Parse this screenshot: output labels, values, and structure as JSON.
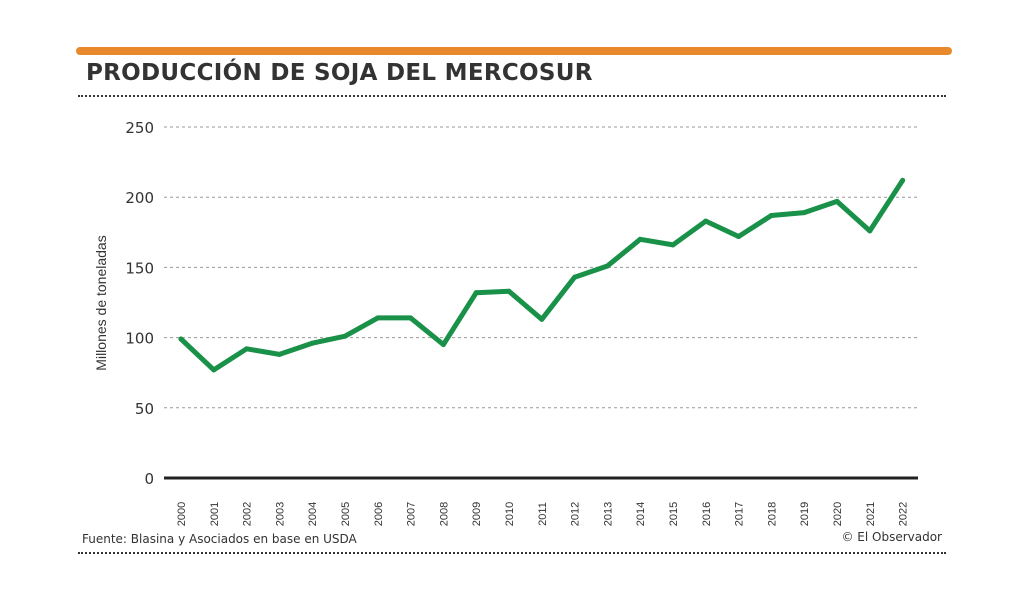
{
  "header": {
    "title": "PRODUCCIÓN DE SOJA DEL MERCOSUR"
  },
  "footer": {
    "source": "Fuente: Blasina y Asociados en base en USDA",
    "credit": "© El Observador"
  },
  "colors": {
    "accent_bar": "#e8892c",
    "line": "#1a9148",
    "text": "#333333",
    "grid": "#999999"
  },
  "chart_data": {
    "type": "line",
    "title": "PRODUCCIÓN DE SOJA DEL MERCOSUR",
    "xlabel": "",
    "ylabel": "Millones de toneladas",
    "ylim": [
      0,
      250
    ],
    "yticks": [
      0,
      50,
      100,
      150,
      200,
      250
    ],
    "grid": true,
    "legend": "none",
    "categories": [
      "2000",
      "2001",
      "2002",
      "2003",
      "2004",
      "2005",
      "2006",
      "2007",
      "2008",
      "2009",
      "2010",
      "2011",
      "2012",
      "2013",
      "2014",
      "2015",
      "2016",
      "2017",
      "2018",
      "2019",
      "2020",
      "2021",
      "2022"
    ],
    "series": [
      {
        "values": [
          99,
          77,
          92,
          88,
          96,
          101,
          114,
          114,
          95,
          132,
          133,
          113,
          143,
          151,
          170,
          166,
          183,
          172,
          187,
          189,
          197,
          176,
          212
        ]
      }
    ]
  }
}
